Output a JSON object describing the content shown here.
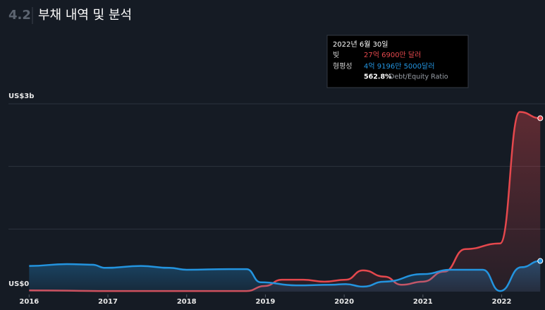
{
  "chart_data": {
    "type": "line",
    "section_number": "4.2",
    "title": "부채 내역 및 분석",
    "xlim": [
      2015.63,
      2022.55
    ],
    "xticks": [
      2016,
      2017,
      2018,
      2019,
      2020,
      2021,
      2022
    ],
    "ylim": [
      0,
      3
    ],
    "yticks": [
      {
        "value": 0,
        "label": "US$0"
      },
      {
        "value": 1,
        "label": null
      },
      {
        "value": 2,
        "label": null
      },
      {
        "value": 3,
        "label": "US$3b"
      }
    ],
    "grid": true,
    "series": [
      {
        "name": "빚",
        "color": "#e5484d",
        "x": [
          2016.0,
          2017.0,
          2018.0,
          2018.76,
          2018.99,
          2019.21,
          2019.48,
          2019.75,
          2020.02,
          2020.24,
          2020.51,
          2020.73,
          2021.0,
          2021.27,
          2021.54,
          2021.98,
          2022.23,
          2022.49
        ],
        "values": [
          0.02,
          0.01,
          0.01,
          0.01,
          0.09,
          0.19,
          0.19,
          0.16,
          0.19,
          0.34,
          0.24,
          0.11,
          0.16,
          0.32,
          0.68,
          0.77,
          2.87,
          2.77
        ]
      },
      {
        "name": "형평성",
        "color": "#2394df",
        "x": [
          2016.0,
          2016.48,
          2016.8,
          2016.97,
          2017.42,
          2017.78,
          2018.0,
          2018.54,
          2018.76,
          2018.94,
          2019.39,
          2019.84,
          2020.02,
          2020.24,
          2020.51,
          2021.0,
          2021.36,
          2021.76,
          2021.98,
          2022.25,
          2022.49
        ],
        "values": [
          0.41,
          0.44,
          0.43,
          0.38,
          0.41,
          0.38,
          0.35,
          0.36,
          0.36,
          0.15,
          0.1,
          0.11,
          0.12,
          0.08,
          0.16,
          0.28,
          0.35,
          0.35,
          0.01,
          0.39,
          0.49
        ]
      }
    ],
    "tooltip": {
      "date": "2022년 6월 30일",
      "debt_value": "27억 6900만 달러",
      "equity_value": "4억 9196만 5000달러",
      "ratio": "562.8%",
      "ratio_label": "Debt/Equity Ratio"
    }
  }
}
